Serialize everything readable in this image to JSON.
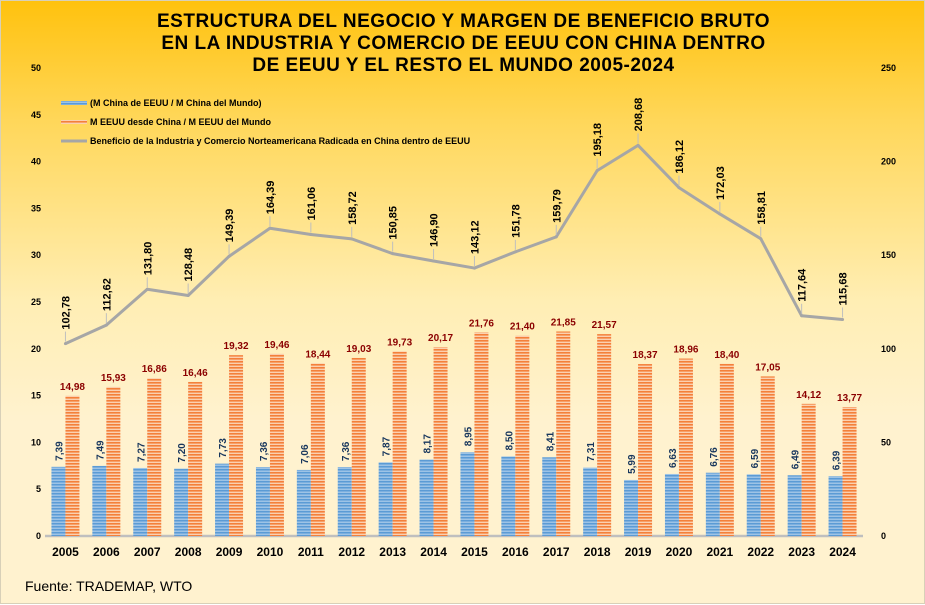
{
  "chart_data": {
    "type": "bar",
    "title_lines": [
      "ESTRUCTURA DEL NEGOCIO Y MARGEN DE BENEFICIO BRUTO",
      "EN LA INDUSTRIA Y COMERCIO DE EEUU CON CHINA DENTRO",
      "DE EEUU Y EL RESTO EL MUNDO 2005-2024"
    ],
    "categories": [
      "2005",
      "2006",
      "2007",
      "2008",
      "2009",
      "2010",
      "2011",
      "2012",
      "2013",
      "2014",
      "2015",
      "2016",
      "2017",
      "2018",
      "2019",
      "2020",
      "2021",
      "2022",
      "2023",
      "2024"
    ],
    "series": [
      {
        "name": "(M China de EEUU / M China del Mundo)",
        "type": "bar",
        "axis": "left",
        "color": "#5b9bd5",
        "values": [
          7.39,
          7.49,
          7.27,
          7.2,
          7.73,
          7.36,
          7.06,
          7.36,
          7.87,
          8.17,
          8.95,
          8.5,
          8.41,
          7.31,
          5.99,
          6.63,
          6.76,
          6.59,
          6.49,
          6.39
        ],
        "labels": [
          "7,39",
          "7,49",
          "7,27",
          "7,20",
          "7,73",
          "7,36",
          "7,06",
          "7,36",
          "7,87",
          "8,17",
          "8,95",
          "8,50",
          "8,41",
          "7,31",
          "5,99",
          "6,63",
          "6,76",
          "6,59",
          "6,49",
          "6,39"
        ]
      },
      {
        "name": "M EEUU desde China / M EEUU del Mundo",
        "type": "bar",
        "axis": "left",
        "color": "#f4894a",
        "values": [
          14.98,
          15.93,
          16.86,
          16.46,
          19.32,
          19.46,
          18.44,
          19.03,
          19.73,
          20.17,
          21.76,
          21.4,
          21.85,
          21.57,
          18.37,
          18.96,
          18.4,
          17.05,
          14.12,
          13.77
        ],
        "labels": [
          "14,98",
          "15,93",
          "16,86",
          "16,46",
          "19,32",
          "19,46",
          "18,44",
          "19,03",
          "19,73",
          "20,17",
          "21,76",
          "21,40",
          "21,85",
          "21,57",
          "18,37",
          "18,96",
          "18,40",
          "17,05",
          "14,12",
          "13,77"
        ]
      },
      {
        "name": "Beneficio de la Industria y Comercio Norteamericana Radicada en China dentro de EEUU",
        "type": "line",
        "axis": "right",
        "color": "#a6a6a6",
        "values": [
          102.78,
          112.62,
          131.8,
          128.48,
          149.39,
          164.39,
          161.06,
          158.72,
          150.85,
          146.9,
          143.12,
          151.78,
          159.79,
          195.18,
          208.68,
          186.12,
          172.03,
          158.81,
          117.64,
          115.68
        ],
        "labels": [
          "102,78",
          "112,62",
          "131,80",
          "128,48",
          "149,39",
          "164,39",
          "161,06",
          "158,72",
          "150,85",
          "146,90",
          "143,12",
          "151,78",
          "159,79",
          "195,18",
          "208,68",
          "186,12",
          "172,03",
          "158,81",
          "117,64",
          "115,68"
        ]
      }
    ],
    "y_left": {
      "min": 0,
      "max": 50,
      "ticks": [
        "0",
        "5",
        "10",
        "15",
        "20",
        "25",
        "30",
        "35",
        "40",
        "45",
        "50"
      ]
    },
    "y_right": {
      "min": 0,
      "max": 250,
      "ticks": [
        "0",
        "50",
        "100",
        "150",
        "200",
        "250"
      ]
    },
    "xlabel": "",
    "ylabel": "",
    "grid": false,
    "legend_position": "top-left"
  },
  "source": "Fuente: TRADEMAP,  WTO"
}
